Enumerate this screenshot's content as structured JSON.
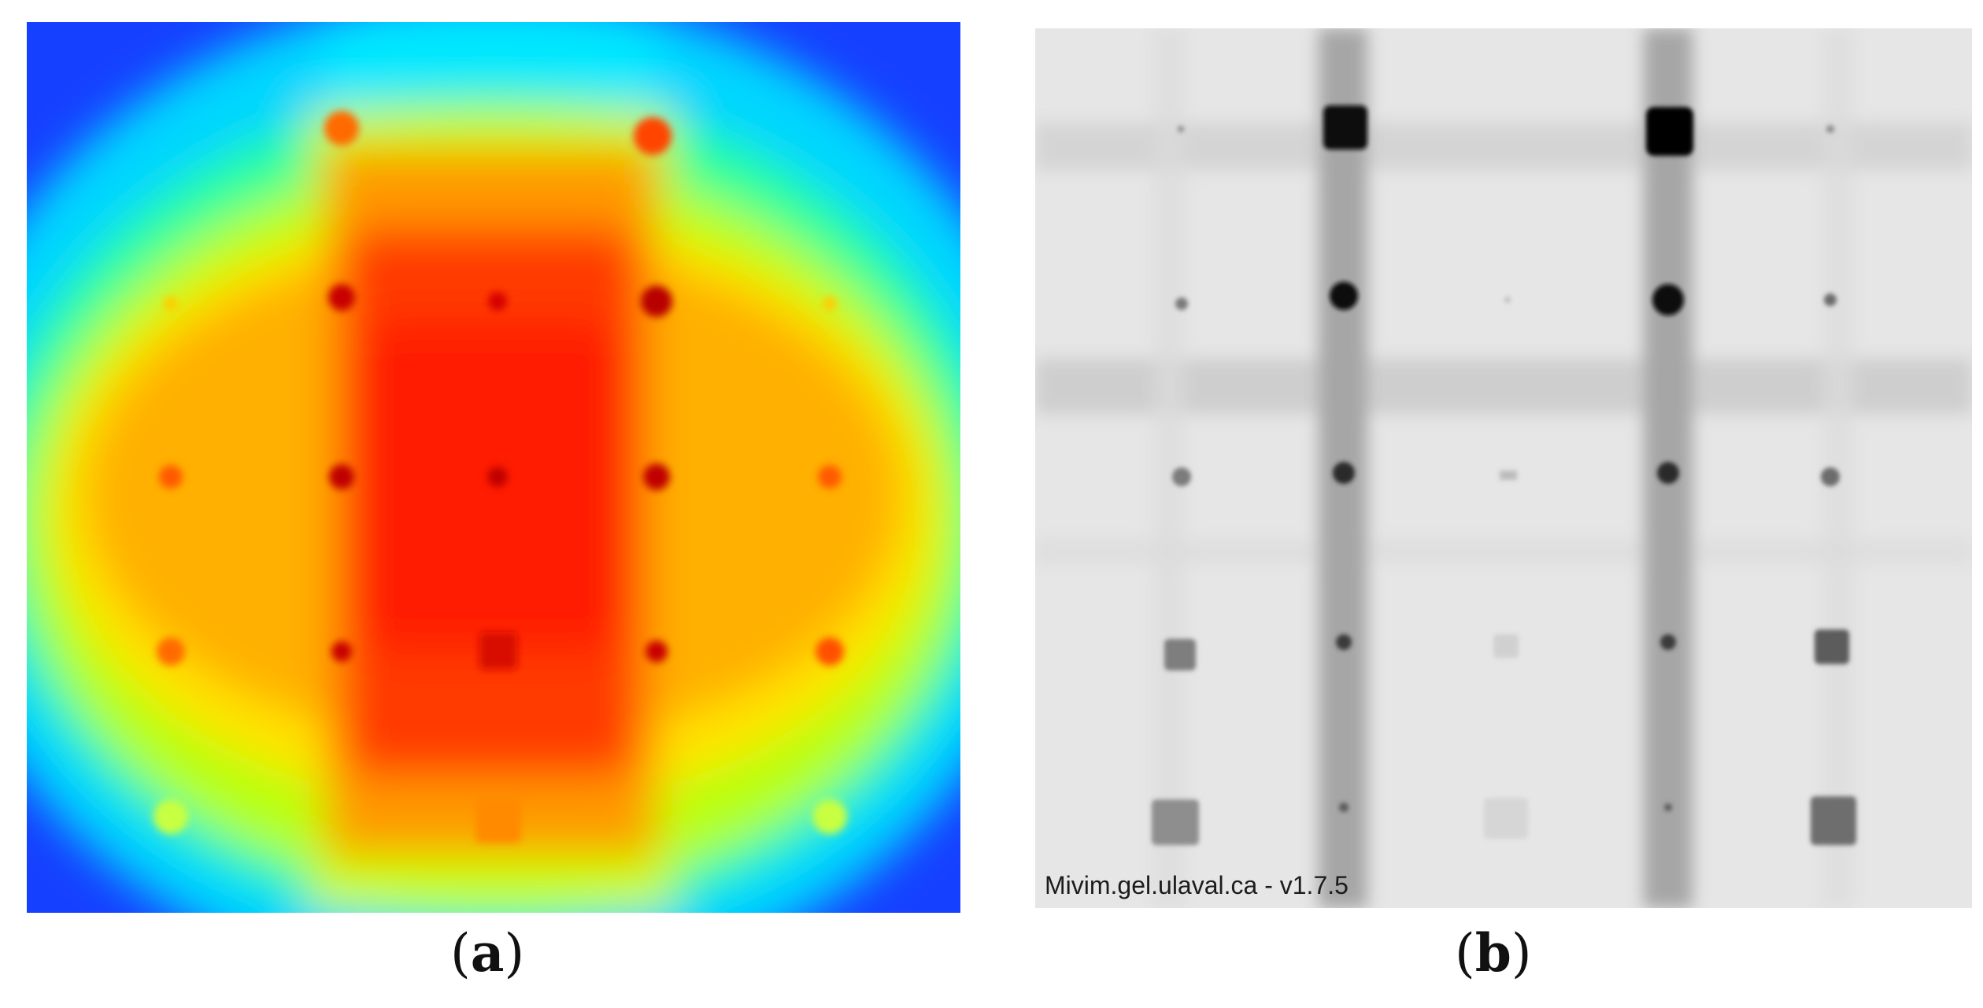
{
  "panel_a": {
    "caption_open": "(",
    "caption_letter": "a",
    "caption_close": ")",
    "colormap": [
      "#0a2cff",
      "#00e5ff",
      "#2bff8a",
      "#c8ff00",
      "#ffb400",
      "#ff2a00"
    ]
  },
  "panel_b": {
    "caption_open": "(",
    "caption_letter": "b",
    "caption_close": ")",
    "watermark": "Mivim.gel.ulaval.ca - v1.7.5"
  }
}
